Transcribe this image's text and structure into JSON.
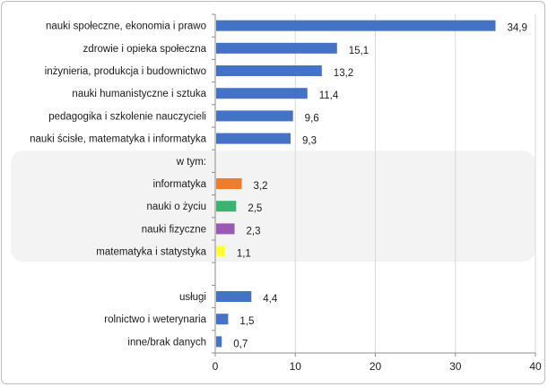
{
  "chart_data": {
    "type": "bar",
    "orientation": "horizontal",
    "categories": [
      "nauki społeczne, ekonomia i prawo",
      "zdrowie i opieka społeczna",
      "inżynieria, produkcja i budownictwo",
      "nauki humanistyczne i sztuka",
      "pedagogika i szkolenie nauczycieli",
      "nauki ścisłe, matematyka i informatyka",
      "w tym:",
      "informatyka",
      "nauki o życiu",
      "nauki fizyczne",
      "matematyka i statystyka",
      "",
      "usługi",
      "rolnictwo i weterynaria",
      "inne/brak danych"
    ],
    "values": [
      34.9,
      15.1,
      13.2,
      11.4,
      9.6,
      9.3,
      null,
      3.2,
      2.5,
      2.3,
      1.1,
      null,
      4.4,
      1.5,
      0.7
    ],
    "value_labels": [
      "34,9",
      "15,1",
      "13,2",
      "11,4",
      "9,6",
      "9,3",
      "",
      "3,2",
      "2,5",
      "2,3",
      "1,1",
      "",
      "4,4",
      "1,5",
      "0,7"
    ],
    "colors": [
      "#4472c4",
      "#4472c4",
      "#4472c4",
      "#4472c4",
      "#4472c4",
      "#4472c4",
      "",
      "#ed7d31",
      "#3cb371",
      "#9b59b6",
      "#ffff33",
      "",
      "#4472c4",
      "#4472c4",
      "#4472c4"
    ],
    "xlim": [
      0,
      40
    ],
    "x_ticks": [
      0,
      10,
      20,
      30,
      40
    ],
    "grid": "vertical",
    "highlight_group": "w tym:",
    "highlight_color": "#f3f3f3",
    "title": "",
    "xlabel": "",
    "ylabel": ""
  }
}
